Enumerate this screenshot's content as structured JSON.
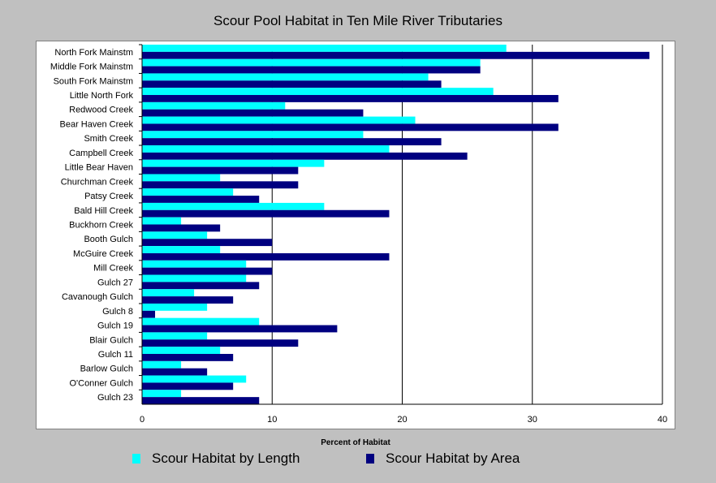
{
  "chart_data": {
    "type": "bar",
    "orientation": "horizontal",
    "title": "Scour Pool Habitat in Ten Mile River Tributaries",
    "xlabel": "Percent of Habitat",
    "ylabel": "",
    "xlim": [
      0,
      40
    ],
    "xticks": [
      0,
      10,
      20,
      30,
      40
    ],
    "grid": true,
    "legend_position": "bottom",
    "categories": [
      "North Fork Mainstm",
      "Middle Fork Mainstm",
      "South Fork Mainstm",
      "Little North Fork",
      "Redwood Creek",
      "Bear Haven Creek",
      "Smith Creek",
      "Campbell Creek",
      "Little Bear Haven",
      "Churchman Creek",
      "Patsy Creek",
      "Bald Hill Creek",
      "Buckhorn Creek",
      "Booth Gulch",
      "McGuire Creek",
      "Mill Creek",
      "Gulch 27",
      "Cavanough Gulch",
      "Gulch 8",
      "Gulch 19",
      "Blair Gulch",
      "Gulch 11",
      "Barlow Gulch",
      "O'Conner Gulch",
      "Gulch 23"
    ],
    "series": [
      {
        "name": "Scour Habitat by Length",
        "color": "#00ffff",
        "values": [
          28,
          26,
          22,
          27,
          11,
          21,
          17,
          19,
          14,
          6,
          7,
          14,
          3,
          5,
          6,
          8,
          8,
          4,
          5,
          9,
          5,
          6,
          3,
          8,
          3
        ]
      },
      {
        "name": "Scour Habitat by Area",
        "color": "#000080",
        "values": [
          39,
          26,
          23,
          32,
          17,
          32,
          23,
          25,
          12,
          12,
          9,
          19,
          6,
          10,
          19,
          10,
          9,
          7,
          1,
          15,
          12,
          7,
          5,
          7,
          9
        ]
      }
    ]
  }
}
